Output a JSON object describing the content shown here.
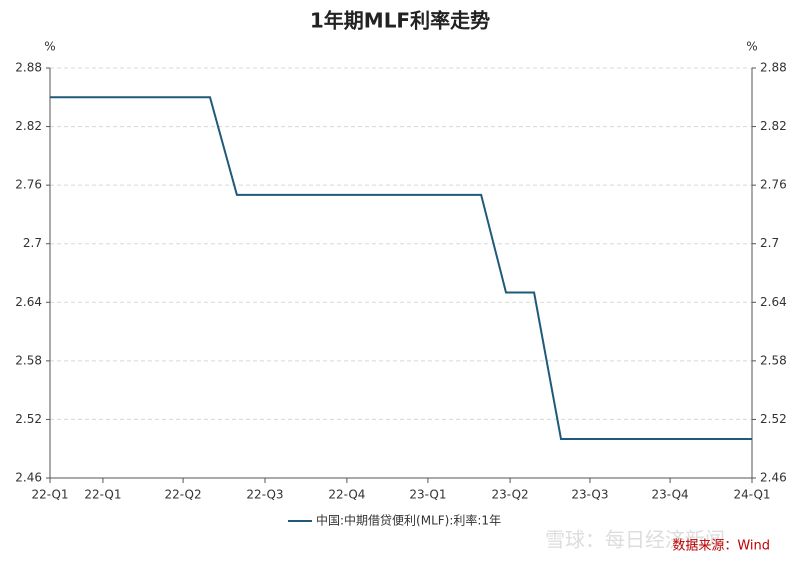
{
  "chart_data": {
    "type": "line",
    "title": "1年期MLF利率走势",
    "y_unit": "%",
    "y2_unit": "%",
    "x": [
      0,
      5.47,
      6.39,
      14.74,
      15.59,
      16.55,
      17.47,
      24
    ],
    "series": [
      {
        "name": "中国:中期借贷便利(MLF):利率:1年",
        "color": "#1f5a7a",
        "values": [
          2.85,
          2.85,
          2.75,
          2.75,
          2.65,
          2.65,
          2.5,
          2.5
        ]
      }
    ],
    "xlim": [
      0,
      24
    ],
    "xticks": [
      {
        "value": 0,
        "label": "22-Q1"
      },
      {
        "value": 1.81,
        "label": "22-Q1"
      },
      {
        "value": 4.55,
        "label": "22-Q2"
      },
      {
        "value": 7.35,
        "label": "22-Q3"
      },
      {
        "value": 10.15,
        "label": "22-Q4"
      },
      {
        "value": 12.92,
        "label": "23-Q1"
      },
      {
        "value": 15.73,
        "label": "23-Q2"
      },
      {
        "value": 18.46,
        "label": "23-Q3"
      },
      {
        "value": 21.2,
        "label": "23-Q4"
      },
      {
        "value": 24,
        "label": "24-Q1"
      }
    ],
    "ylim": [
      2.46,
      2.88
    ],
    "yticks": [
      2.46,
      2.52,
      2.58,
      2.64,
      2.7,
      2.76,
      2.82,
      2.88
    ],
    "y2lim": [
      2.46,
      2.88
    ],
    "y2ticks": [
      2.46,
      2.52,
      2.58,
      2.64,
      2.7,
      2.76,
      2.82,
      2.88
    ],
    "grid": true,
    "legend": "bottom",
    "source": "数据来源：Wind",
    "watermark": "雪球：每日经济新闻"
  }
}
